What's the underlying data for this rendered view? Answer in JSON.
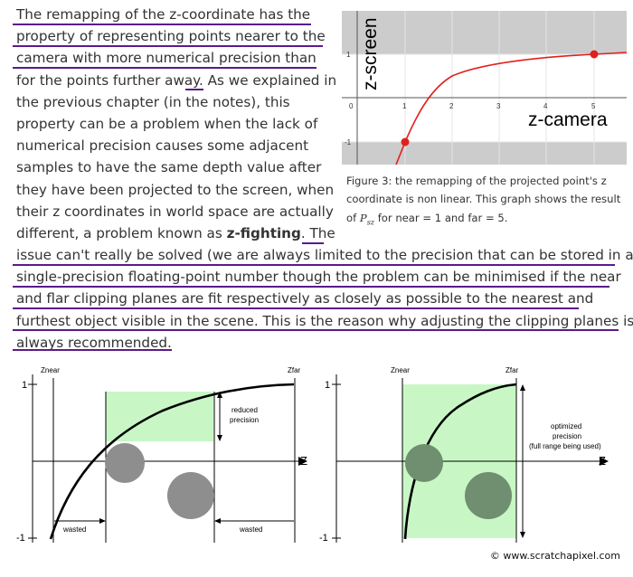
{
  "paragraph": {
    "lines": [
      "The remapping of the z-coordinate has the",
      "property of representing points nearer to the",
      "camera with more numerical precision than",
      "for the points further away. As we explained in",
      "the previous chapter (in the notes), this",
      "property can be a problem when the lack of",
      "numerical precision causes some adjacent",
      "samples to have the same depth value after",
      "they have been projected to the screen, when",
      "their z coordinates in world space are actually",
      "different, a problem known as",
      "z-fighting",
      ". The",
      "issue can't really be solved (we are always limited to the precision that can be stored in a",
      "single-precision floating-point number though the problem can be minimised if the near",
      "and flar clipping planes are fit respectively as closely as possible to the nearest and",
      "furthest object visible in the scene. This is the reason why adjusting the clipping planes is",
      "always recommended."
    ]
  },
  "figure3": {
    "y_axis_label": "z-screen",
    "x_axis_label": "z-camera",
    "x_ticks": [
      "0",
      "1",
      "2",
      "3",
      "4",
      "5"
    ],
    "y_ticks": [
      "1",
      "-1"
    ],
    "caption_1": "Figure 3: the remapping of the projected point's z",
    "caption_2": "coordinate is non linear. This graph shows the result",
    "caption_3_pre": "of",
    "caption_math": "P",
    "caption_math_sub": "sz",
    "caption_3_post": "for near = 1 and far = 5.",
    "curve_color": "#e0201b",
    "band_color": "#cccccc"
  },
  "left_diagram": {
    "znear": "Znear",
    "zfar": "Zfar",
    "tick_top": "1",
    "tick_bottom": "-1",
    "axis_label": "Z",
    "precision_label_1": "reduced",
    "precision_label_2": "precision",
    "wasted_left": "wasted",
    "wasted_right": "wasted"
  },
  "right_diagram": {
    "znear": "Znear",
    "zfar": "Zfar",
    "tick_top": "1",
    "tick_bottom": "-1",
    "axis_label": "Z",
    "precision_label_1": "optimized",
    "precision_label_2": "precision",
    "precision_label_3": "(full range being used)"
  },
  "colors": {
    "green_fill": "#c8f7c5",
    "sphere": "#8e8e8e",
    "underline": "#5b1a8a"
  },
  "credit": "© www.scratchapixel.com"
}
